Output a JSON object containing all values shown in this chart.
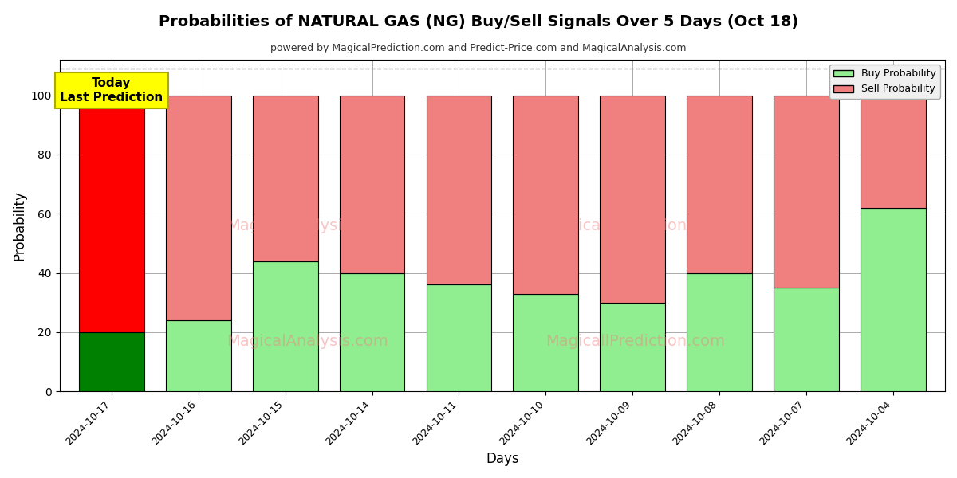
{
  "title": "Probabilities of NATURAL GAS (NG) Buy/Sell Signals Over 5 Days (Oct 18)",
  "subtitle": "powered by MagicalPrediction.com and Predict-Price.com and MagicalAnalysis.com",
  "xlabel": "Days",
  "ylabel": "Probability",
  "watermark1": "MagicalAnalysis.com",
  "watermark2": "MagicallPrediction.com",
  "dates": [
    "2024-10-17",
    "2024-10-16",
    "2024-10-15",
    "2024-10-14",
    "2024-10-11",
    "2024-10-10",
    "2024-10-09",
    "2024-10-08",
    "2024-10-07",
    "2024-10-04"
  ],
  "buy_values": [
    20,
    24,
    44,
    40,
    36,
    33,
    30,
    40,
    35,
    62
  ],
  "sell_values": [
    80,
    76,
    56,
    60,
    64,
    67,
    70,
    60,
    65,
    38
  ],
  "today_bar_buy_color": "#008000",
  "today_bar_sell_color": "#ff0000",
  "other_bar_buy_color": "#90ee90",
  "other_bar_sell_color": "#f08080",
  "today_label_bg": "#ffff00",
  "today_label_text": "Today\nLast Prediction",
  "legend_buy_label": "Buy Probability",
  "legend_sell_label": "Sell Probability",
  "ylim": [
    0,
    112
  ],
  "yticks": [
    0,
    20,
    40,
    60,
    80,
    100
  ],
  "dashed_line_y": 109,
  "grid_color": "#aaaaaa",
  "background_color": "#ffffff",
  "bar_edge_color": "#000000",
  "bar_width": 0.75
}
